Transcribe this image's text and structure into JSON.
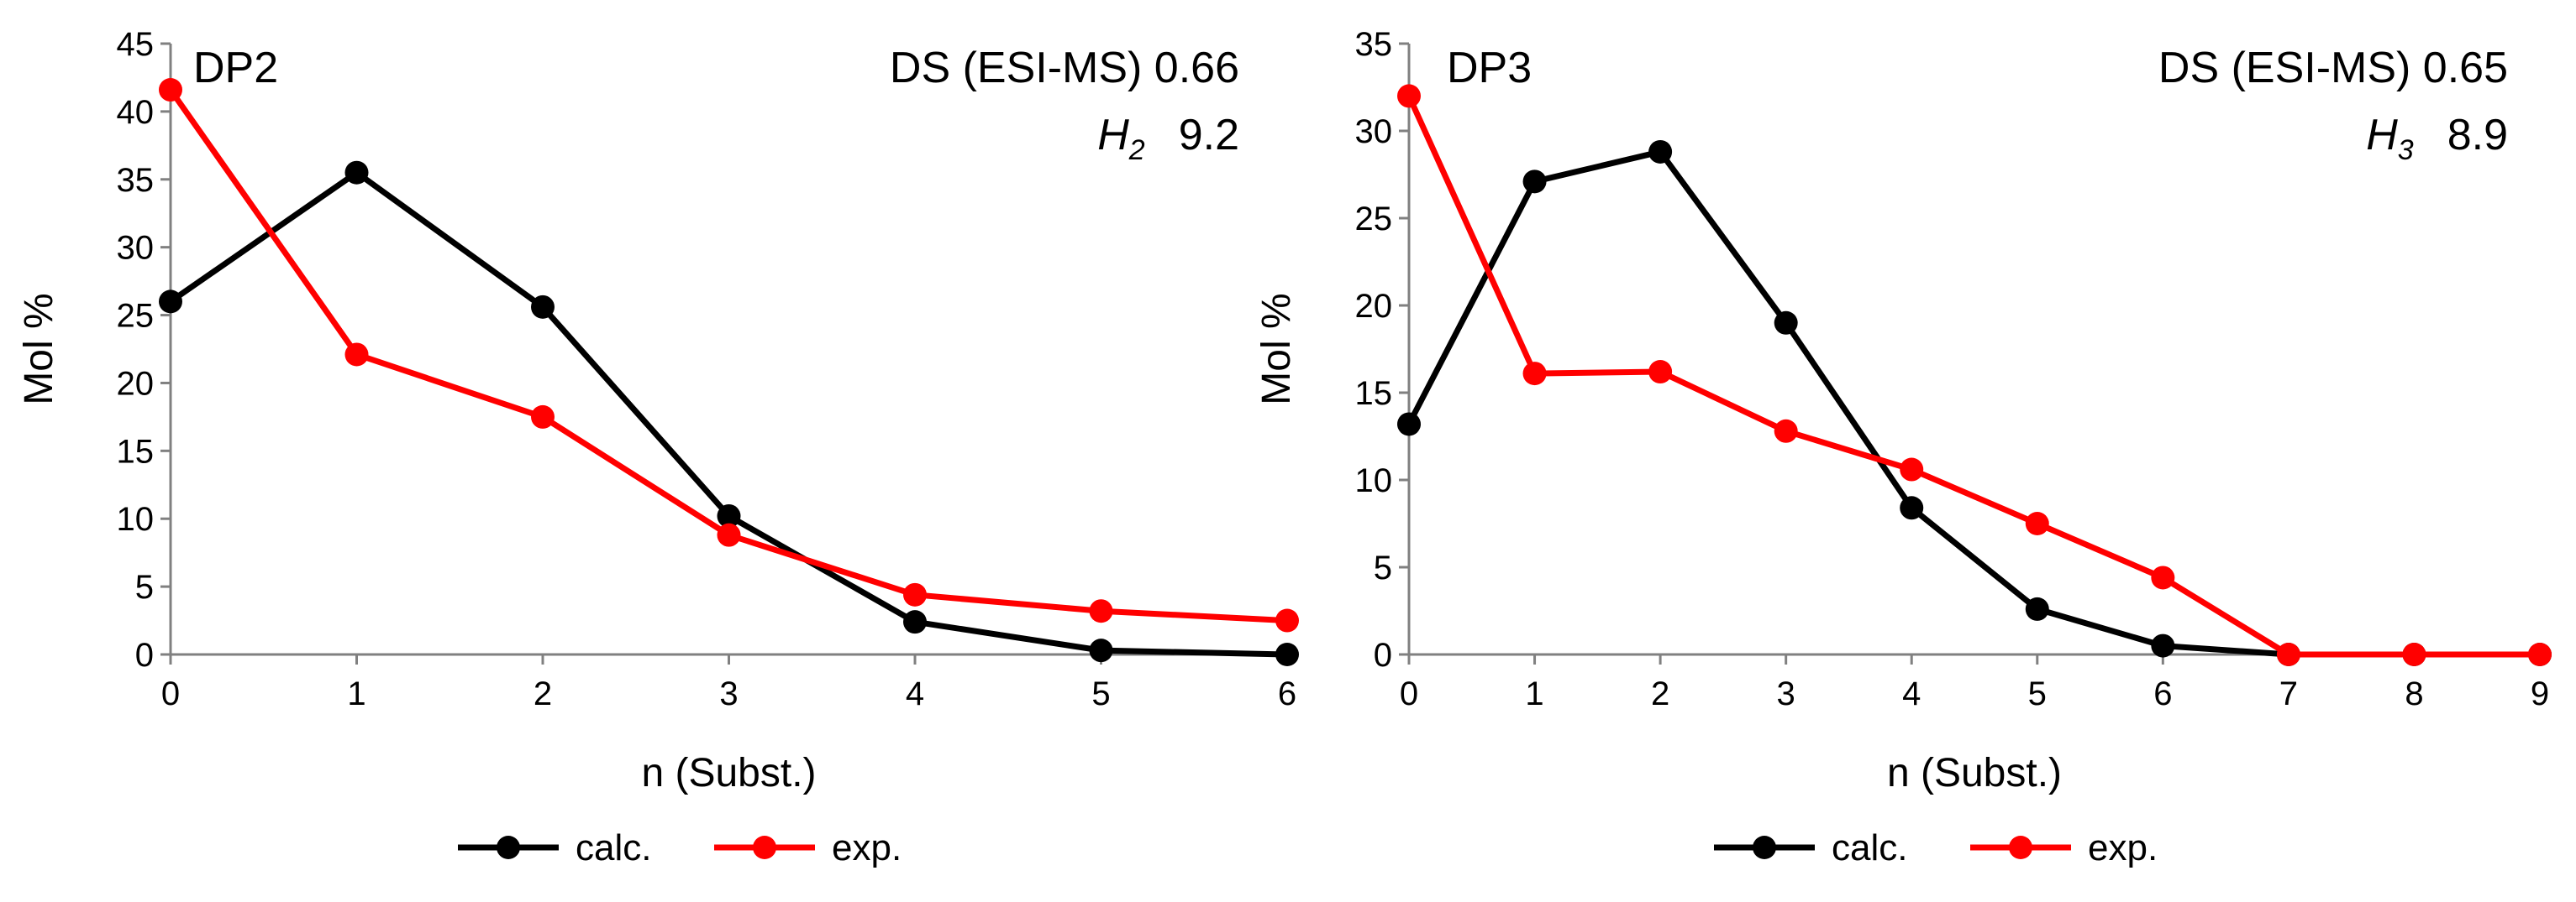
{
  "chart_data": [
    {
      "type": "line",
      "panel_label": "DP2",
      "annotation": {
        "ds_text": "DS (ESI-MS) 0.66",
        "h_symbol": "H",
        "h_subscript": "2",
        "h_value": "9.2"
      },
      "xlabel": "n (Subst.)",
      "ylabel": "Mol %",
      "x": [
        0,
        1,
        2,
        3,
        4,
        5,
        6
      ],
      "xlim": [
        0,
        6
      ],
      "ylim": [
        0,
        45
      ],
      "yticks": [
        0,
        5,
        10,
        15,
        20,
        25,
        30,
        35,
        40,
        45
      ],
      "grid": false,
      "series": [
        {
          "name": "calc.",
          "color": "#000000",
          "values": [
            26.0,
            35.5,
            25.6,
            10.2,
            2.4,
            0.3,
            0.0
          ]
        },
        {
          "name": "exp.",
          "color": "#ff0000",
          "values": [
            41.6,
            22.1,
            17.5,
            8.8,
            4.4,
            3.2,
            2.5
          ]
        }
      ],
      "legend": {
        "position": "bottom",
        "entries": [
          "calc.",
          "exp."
        ]
      }
    },
    {
      "type": "line",
      "panel_label": "DP3",
      "annotation": {
        "ds_text": "DS (ESI-MS) 0.65",
        "h_symbol": "H",
        "h_subscript": "3",
        "h_value": "8.9"
      },
      "xlabel": "n (Subst.)",
      "ylabel": "Mol %",
      "x": [
        0,
        1,
        2,
        3,
        4,
        5,
        6,
        7,
        8,
        9
      ],
      "xlim": [
        0,
        9
      ],
      "ylim": [
        0,
        35
      ],
      "yticks": [
        0,
        5,
        10,
        15,
        20,
        25,
        30,
        35
      ],
      "grid": false,
      "series": [
        {
          "name": "calc.",
          "color": "#000000",
          "values": [
            13.2,
            27.1,
            28.8,
            19.0,
            8.4,
            2.6,
            0.5,
            0.0,
            0.0,
            0.0
          ]
        },
        {
          "name": "exp.",
          "color": "#ff0000",
          "values": [
            32.0,
            16.1,
            16.2,
            12.8,
            10.6,
            7.5,
            4.4,
            0.0,
            0.0,
            0.0
          ]
        }
      ],
      "legend": {
        "position": "bottom",
        "entries": [
          "calc.",
          "exp."
        ]
      }
    }
  ]
}
